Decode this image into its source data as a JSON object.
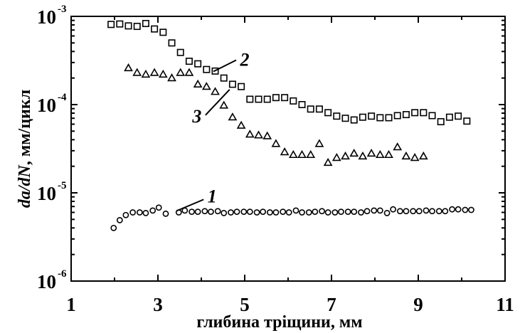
{
  "chart_data": {
    "type": "scatter",
    "xlabel": "глибина тріщини, мм",
    "ylabel": {
      "part1": "da",
      "part2": "/",
      "part3": "dN",
      "part4": ", мм/цикл"
    },
    "xlim": [
      1,
      11
    ],
    "ylim": [
      1e-06,
      0.001
    ],
    "yscale": "log",
    "grid": false,
    "x_ticks": [
      "1",
      "3",
      "5",
      "7",
      "9",
      "11"
    ],
    "y_ticks": [
      {
        "base": "10",
        "exp": "-3"
      },
      {
        "base": "10",
        "exp": "-4"
      },
      {
        "base": "10",
        "exp": "-5"
      },
      {
        "base": "10",
        "exp": "-6"
      }
    ],
    "series": [
      {
        "name": "1",
        "marker": "circle",
        "x": [
          1.98,
          2.12,
          2.26,
          2.42,
          2.58,
          2.72,
          2.88,
          3.02,
          3.18,
          3.48,
          3.62,
          3.78,
          3.92,
          4.08,
          4.22,
          4.38,
          4.52,
          4.68,
          4.82,
          4.98,
          5.12,
          5.28,
          5.42,
          5.58,
          5.72,
          5.88,
          6.02,
          6.18,
          6.32,
          6.48,
          6.62,
          6.78,
          6.92,
          7.08,
          7.22,
          7.38,
          7.52,
          7.68,
          7.82,
          7.98,
          8.12,
          8.28,
          8.42,
          8.58,
          8.72,
          8.88,
          9.02,
          9.18,
          9.32,
          9.48,
          9.62,
          9.78,
          9.92,
          10.08,
          10.22
        ],
        "y": [
          4e-06,
          4.9e-06,
          5.6e-06,
          6e-06,
          6e-06,
          5.9e-06,
          6.3e-06,
          6.8e-06,
          5.8e-06,
          6e-06,
          6.3e-06,
          6.1e-06,
          6.1e-06,
          6.2e-06,
          6.1e-06,
          6.2e-06,
          5.9e-06,
          6e-06,
          6.1e-06,
          6.1e-06,
          6.1e-06,
          6e-06,
          6.1e-06,
          6e-06,
          6e-06,
          6.1e-06,
          6e-06,
          6.3e-06,
          6e-06,
          6e-06,
          6.1e-06,
          6.2e-06,
          6e-06,
          6e-06,
          6.1e-06,
          6.1e-06,
          6.1e-06,
          6e-06,
          6.2e-06,
          6.3e-06,
          6.3e-06,
          5.9e-06,
          6.5e-06,
          6.2e-06,
          6.2e-06,
          6.2e-06,
          6.2e-06,
          6.3e-06,
          6.2e-06,
          6.2e-06,
          6.2e-06,
          6.5e-06,
          6.5e-06,
          6.4e-06,
          6.4e-06
        ]
      },
      {
        "name": "2",
        "marker": "square",
        "x": [
          1.92,
          2.12,
          2.32,
          2.52,
          2.72,
          2.92,
          3.12,
          3.32,
          3.52,
          3.72,
          3.92,
          4.12,
          4.32,
          4.52,
          4.72,
          4.92,
          5.12,
          5.32,
          5.52,
          5.72,
          5.92,
          6.12,
          6.32,
          6.52,
          6.72,
          6.92,
          7.12,
          7.32,
          7.52,
          7.72,
          7.92,
          8.12,
          8.32,
          8.52,
          8.72,
          8.92,
          9.12,
          9.32,
          9.52,
          9.72,
          9.92,
          10.12
        ],
        "y": [
          0.00081,
          0.00082,
          0.00078,
          0.00077,
          0.00083,
          0.00072,
          0.00066,
          0.0005,
          0.00039,
          0.00031,
          0.00029,
          0.00025,
          0.00024,
          0.0002,
          0.00017,
          0.00016,
          0.000115,
          0.000115,
          0.000115,
          0.00012,
          0.00012,
          0.00011,
          0.0001,
          8.9e-05,
          8.9e-05,
          8.1e-05,
          7.4e-05,
          7e-05,
          6.7e-05,
          7.2e-05,
          7.4e-05,
          7.1e-05,
          7.1e-05,
          7.5e-05,
          7.7e-05,
          8.1e-05,
          8.1e-05,
          7.5e-05,
          6.4e-05,
          7.2e-05,
          7.4e-05,
          6.5e-05
        ]
      },
      {
        "name": "3",
        "marker": "triangle",
        "x": [
          2.32,
          2.52,
          2.72,
          2.92,
          3.12,
          3.32,
          3.52,
          3.72,
          3.92,
          4.12,
          4.32,
          4.52,
          4.72,
          4.92,
          5.12,
          5.32,
          5.52,
          5.72,
          5.92,
          6.12,
          6.32,
          6.52,
          6.72,
          6.92,
          7.12,
          7.32,
          7.52,
          7.72,
          7.92,
          8.12,
          8.32,
          8.52,
          8.72,
          8.92,
          9.12
        ],
        "y": [
          0.00026,
          0.00023,
          0.00022,
          0.00023,
          0.00022,
          0.0002,
          0.00023,
          0.00023,
          0.00017,
          0.00016,
          0.00014,
          9.8e-05,
          7.2e-05,
          5.8e-05,
          4.6e-05,
          4.5e-05,
          4.4e-05,
          3.6e-05,
          2.9e-05,
          2.7e-05,
          2.7e-05,
          2.7e-05,
          3.6e-05,
          2.2e-05,
          2.5e-05,
          2.6e-05,
          2.8e-05,
          2.6e-05,
          2.8e-05,
          2.7e-05,
          2.7e-05,
          3.3e-05,
          2.6e-05,
          2.5e-05,
          2.6e-05
        ]
      }
    ],
    "annotations": [
      {
        "text": "1",
        "x": 4.25,
        "y": 7.8e-06
      },
      {
        "text": "2",
        "x": 5.0,
        "y": 0.000275
      },
      {
        "text": "3",
        "x": 4.85,
        "y": 8.5e-05
      }
    ]
  }
}
